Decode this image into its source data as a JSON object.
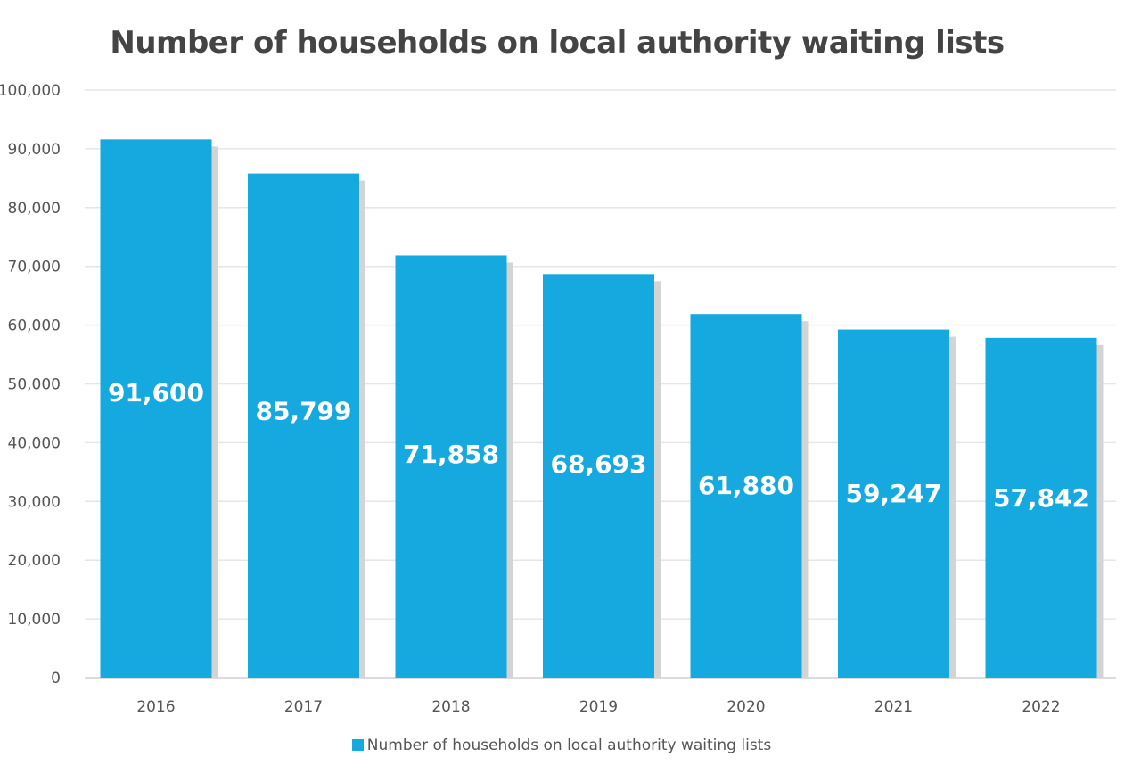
{
  "chart_data": {
    "type": "bar",
    "title": "Number of households on local authority waiting lists",
    "categories": [
      "2016",
      "2017",
      "2018",
      "2019",
      "2020",
      "2021",
      "2022"
    ],
    "series": [
      {
        "name": "Number of households on local authority waiting lists",
        "values": [
          91600,
          85799,
          71858,
          68693,
          61880,
          59247,
          57842
        ],
        "data_labels": [
          "91,600",
          "85,799",
          "71,858",
          "68,693",
          "61,880",
          "59,247",
          "57,842"
        ]
      }
    ],
    "ylim": [
      0,
      100000
    ],
    "yticks": [
      0,
      10000,
      20000,
      30000,
      40000,
      50000,
      60000,
      70000,
      80000,
      90000,
      100000
    ],
    "ytick_labels": [
      "0",
      "10,000",
      "20,000",
      "30,000",
      "40,000",
      "50,000",
      "60,000",
      "70,000",
      "80,000",
      "90,000",
      "100,000"
    ],
    "grid": true,
    "legend_position": "bottom",
    "colors": {
      "bar": "#16a9e0",
      "shadow": "#d4d4d4",
      "grid": "#e6e6e6",
      "label": "#ffffff"
    }
  }
}
